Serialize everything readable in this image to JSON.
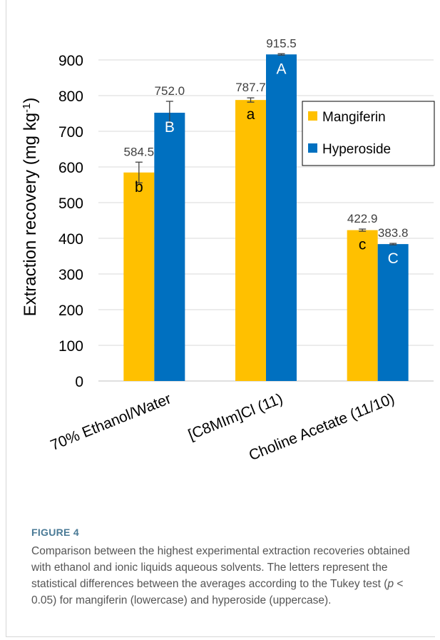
{
  "chart_data": {
    "type": "bar",
    "title": "",
    "xlabel": "",
    "ylabel": "Extraction recovery (mg kg",
    "ylabel_sup": "-1",
    "ylabel_close": ")",
    "ylim": [
      0,
      950
    ],
    "yticks": [
      0,
      100,
      200,
      300,
      400,
      500,
      600,
      700,
      800,
      900
    ],
    "grid": true,
    "legend_position": "right",
    "categories": [
      "70% Ethanol/Water",
      "[C8MIm]Cl (11)",
      "Choline Acetate (11/10)"
    ],
    "series": [
      {
        "name": "Mangiferin",
        "color": "#FFC000",
        "values": [
          584.5,
          787.7,
          422.9
        ],
        "errors": [
          29,
          6,
          3
        ],
        "value_labels": [
          "584.5",
          "787.7",
          "422.9"
        ],
        "letters": [
          "b",
          "a",
          "c"
        ]
      },
      {
        "name": "Hyperoside",
        "color": "#0070C0",
        "values": [
          752.0,
          915.5,
          383.8
        ],
        "errors": [
          32,
          2,
          2
        ],
        "value_labels": [
          "752.0",
          "915.5",
          "383.8"
        ],
        "letters": [
          "B",
          "A",
          "C"
        ]
      }
    ]
  },
  "figure": {
    "label": "FIGURE 4",
    "caption_part1": "Comparison between the highest experimental extraction recoveries obtained with ethanol and ionic liquids aqueous solvents. The letters represent the statistical differences between the averages according to the Tukey test (",
    "caption_italic": "p",
    "caption_part2": " < 0.05) for mangiferin (lowercase) and hyperoside (uppercase)."
  }
}
